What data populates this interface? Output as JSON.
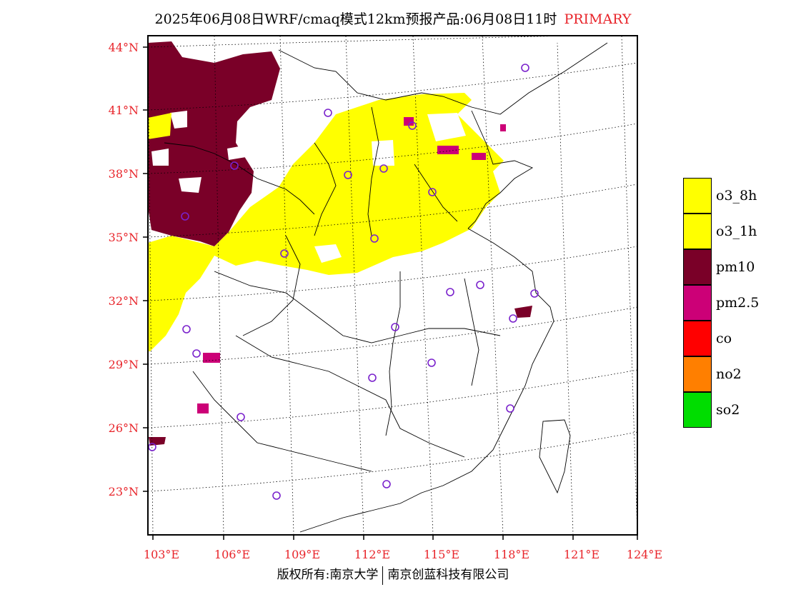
{
  "title": {
    "text": "2025年06月08日WRF/cmaq模式12km预报产品:06月08日11时",
    "tag": "PRIMARY"
  },
  "axes": {
    "lat_labels": [
      "44°N",
      "41°N",
      "38°N",
      "35°N",
      "32°N",
      "29°N",
      "26°N",
      "23°N"
    ],
    "lon_labels": [
      "103°E",
      "106°E",
      "109°E",
      "112°E",
      "115°E",
      "118°E",
      "121°E",
      "124°E"
    ]
  },
  "legend": [
    {
      "label": "o3_8h",
      "color": "#ffff00"
    },
    {
      "label": "o3_1h",
      "color": "#ffff00"
    },
    {
      "label": "pm10",
      "color": "#7a0028"
    },
    {
      "label": "pm2.5",
      "color": "#cc0077"
    },
    {
      "label": "co",
      "color": "#ff0000"
    },
    {
      "label": "no2",
      "color": "#ff7f00"
    },
    {
      "label": "so2",
      "color": "#00dd00"
    }
  ],
  "footer": {
    "left": "版权所有:南京大学",
    "right": "南京创蓝科技有限公司"
  }
}
